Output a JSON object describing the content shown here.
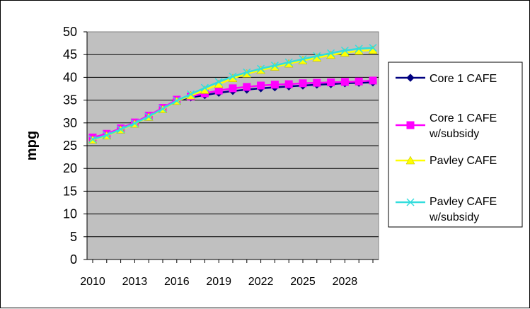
{
  "chart_data": {
    "type": "line",
    "title": "",
    "xlabel": "",
    "ylabel": "mpg",
    "ylim": [
      0,
      50
    ],
    "yticks": [
      "0",
      "5",
      "10",
      "15",
      "20",
      "25",
      "30",
      "35",
      "40",
      "45",
      "50"
    ],
    "xticks": [
      "2010",
      "2013",
      "2016",
      "2019",
      "2022",
      "2025",
      "2028"
    ],
    "grid": "horizontal",
    "legend_position": "right",
    "x": [
      2010,
      2011,
      2012,
      2013,
      2014,
      2015,
      2016,
      2017,
      2018,
      2019,
      2020,
      2021,
      2022,
      2023,
      2024,
      2025,
      2026,
      2027,
      2028,
      2029,
      2030
    ],
    "series": [
      {
        "name": "Core 1 CAFE",
        "color": "#000080",
        "marker": "diamond",
        "values": [
          26.5,
          27.4,
          28.6,
          29.9,
          31.4,
          33.1,
          34.9,
          35.6,
          36.1,
          36.6,
          37.0,
          37.3,
          37.6,
          37.8,
          38.0,
          38.2,
          38.4,
          38.5,
          38.7,
          38.8,
          38.9
        ]
      },
      {
        "name": "Core 1 CAFE w/subsidy",
        "color": "#ff00ff",
        "marker": "square",
        "values": [
          26.8,
          27.6,
          28.8,
          30.1,
          31.6,
          33.3,
          35.1,
          35.8,
          36.5,
          37.1,
          37.6,
          37.9,
          38.2,
          38.4,
          38.5,
          38.7,
          38.8,
          38.9,
          39.0,
          39.1,
          39.3
        ]
      },
      {
        "name": "Pavley CAFE",
        "color": "#ffff00",
        "marker": "triangle",
        "values": [
          26.3,
          27.2,
          28.5,
          29.8,
          31.3,
          33.0,
          34.8,
          36.0,
          37.2,
          38.5,
          39.8,
          40.8,
          41.6,
          42.3,
          43.0,
          43.7,
          44.3,
          44.9,
          45.4,
          45.8,
          46.0
        ]
      },
      {
        "name": "Pavley CAFE w/subsidy",
        "color": "#33dddd",
        "marker": "x",
        "values": [
          26.4,
          27.3,
          28.6,
          29.9,
          31.4,
          33.1,
          34.9,
          36.3,
          37.7,
          39.0,
          40.2,
          41.1,
          41.9,
          42.6,
          43.3,
          44.0,
          44.7,
          45.3,
          45.9,
          46.3,
          46.5
        ]
      }
    ],
    "legend": [
      {
        "line1": "Core 1 CAFE",
        "line2": ""
      },
      {
        "line1": "Core 1 CAFE",
        "line2": "w/subsidy"
      },
      {
        "line1": "Pavley CAFE",
        "line2": ""
      },
      {
        "line1": "Pavley CAFE",
        "line2": "w/subsidy"
      }
    ]
  }
}
